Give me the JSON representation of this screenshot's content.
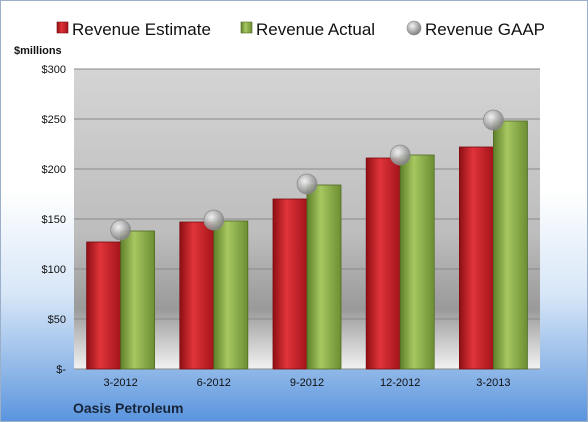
{
  "chart_data": {
    "type": "bar",
    "title": "",
    "company": "Oasis Petroleum",
    "unit_label": "$millions",
    "categories": [
      "3-2012",
      "6-2012",
      "9-2012",
      "12-2012",
      "3-2013"
    ],
    "series": [
      {
        "name": "Revenue Estimate",
        "kind": "bar",
        "color": "#cc1e25",
        "values": [
          127,
          147,
          170,
          211,
          222
        ]
      },
      {
        "name": "Revenue Actual",
        "kind": "bar",
        "color": "#8db04a",
        "values": [
          138,
          148,
          184,
          214,
          248
        ]
      },
      {
        "name": "Revenue GAAP",
        "kind": "marker",
        "color": "#a9a9a9",
        "values": [
          139,
          149,
          185,
          214,
          249
        ]
      }
    ],
    "ylim": [
      0,
      300
    ],
    "yticks": [
      0,
      50,
      100,
      150,
      200,
      250,
      300
    ],
    "ytick_labels": [
      "$-",
      "$50",
      "$100",
      "$150",
      "$200",
      "$250",
      "$300"
    ],
    "grid": true,
    "legend_position": "top"
  }
}
